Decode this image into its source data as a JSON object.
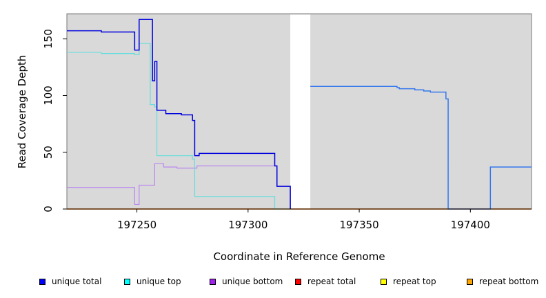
{
  "chart_data": {
    "type": "line",
    "title": "",
    "xlabel": "Coordinate in Reference Genome",
    "ylabel": "Read Coverage Depth",
    "xlim": [
      197218.5,
      197427.5
    ],
    "ylim": [
      0,
      172
    ],
    "x_ticks": [
      197250,
      197300,
      197350,
      197400
    ],
    "x_tick_labels": [
      "197250",
      "197300",
      "197350",
      "197400"
    ],
    "y_ticks": [
      0,
      50,
      100,
      150
    ],
    "y_tick_labels": [
      "0",
      "50",
      "100",
      "150"
    ],
    "grid": false,
    "background": "#d9d9d9",
    "gap_region": [
      197319,
      197328
    ],
    "legend_position": "bottom",
    "series": [
      {
        "name": "unique total",
        "color": "#0000dd",
        "legend_color": "#0000ff",
        "step_points": [
          [
            197218.5,
            157
          ],
          [
            197234,
            156
          ],
          [
            197249,
            140
          ],
          [
            197251,
            167
          ],
          [
            197257,
            113
          ],
          [
            197258,
            130
          ],
          [
            197259,
            87
          ],
          [
            197263,
            84
          ],
          [
            197270,
            83
          ],
          [
            197275,
            78
          ],
          [
            197276,
            47
          ],
          [
            197278,
            49
          ],
          [
            197312,
            38
          ],
          [
            197313,
            20
          ],
          [
            197319,
            0
          ]
        ]
      },
      {
        "name": "unique total (continuation)",
        "color": "#3377ee",
        "legend_color": "#0000ff",
        "step_points": [
          [
            197328,
            108
          ],
          [
            197367,
            107
          ],
          [
            197368,
            106
          ],
          [
            197375,
            105
          ],
          [
            197379,
            104
          ],
          [
            197382,
            103
          ],
          [
            197389,
            97
          ],
          [
            197390,
            0
          ],
          [
            197409,
            37
          ],
          [
            197427.5,
            37
          ]
        ]
      },
      {
        "name": "unique top",
        "color": "#66dddd",
        "legend_color": "#00ffff",
        "step_points": [
          [
            197218.5,
            138
          ],
          [
            197234,
            137
          ],
          [
            197249,
            136
          ],
          [
            197251,
            146
          ],
          [
            197256,
            92
          ],
          [
            197258,
            90
          ],
          [
            197259,
            47
          ],
          [
            197275,
            44
          ],
          [
            197276,
            11
          ],
          [
            197312,
            0
          ],
          [
            197319,
            0
          ]
        ]
      },
      {
        "name": "unique bottom",
        "color": "#bb88ee",
        "legend_color": "#a020f0",
        "step_points": [
          [
            197218.5,
            19
          ],
          [
            197249,
            4
          ],
          [
            197251,
            21
          ],
          [
            197258,
            40
          ],
          [
            197262,
            37
          ],
          [
            197268,
            36
          ],
          [
            197277,
            38
          ],
          [
            197312,
            38
          ],
          [
            197313,
            20
          ],
          [
            197319,
            0
          ]
        ]
      },
      {
        "name": "repeat total",
        "color": "#ff0000",
        "legend_color": "#ff0000",
        "step_points": [
          [
            197218.5,
            0
          ],
          [
            197427.5,
            0
          ]
        ]
      },
      {
        "name": "repeat top",
        "color": "#ffff00",
        "legend_color": "#ffff00",
        "step_points": [
          [
            197218.5,
            0
          ],
          [
            197427.5,
            0
          ]
        ]
      },
      {
        "name": "repeat bottom",
        "color": "#ffa500",
        "legend_color": "#ffa500",
        "step_points": [
          [
            197218.5,
            0
          ],
          [
            197427.5,
            0
          ]
        ]
      }
    ]
  },
  "legend": {
    "items": [
      {
        "label": "unique total",
        "color": "#0000ff"
      },
      {
        "label": "unique top",
        "color": "#00ffff"
      },
      {
        "label": "unique bottom",
        "color": "#a020f0"
      },
      {
        "label": "repeat total",
        "color": "#ff0000"
      },
      {
        "label": "repeat top",
        "color": "#ffff00"
      },
      {
        "label": "repeat bottom",
        "color": "#ffa500"
      }
    ]
  }
}
